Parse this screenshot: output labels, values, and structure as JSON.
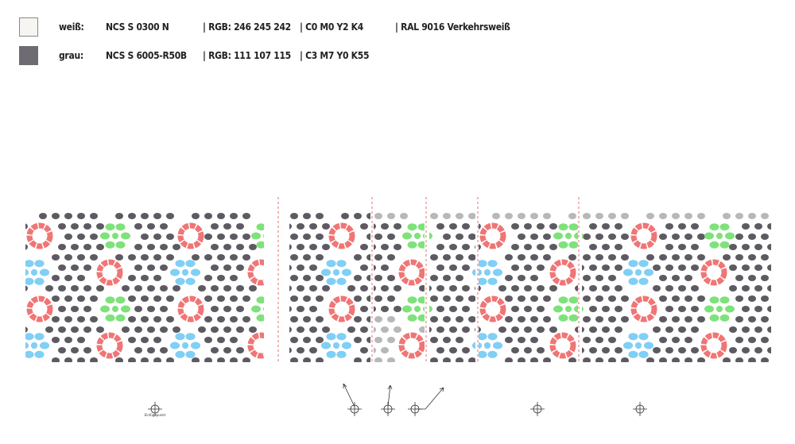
{
  "legend": [
    {
      "name": "weiß:",
      "ncs": "NCS S 0300 N",
      "rgb": "| RGB: 246 245 242",
      "cmyk": "| C0 M0 Y2 K4",
      "ral": "| RAL 9016 Verkehrsweiß"
    },
    {
      "name": "grau:",
      "ncs": "NCS S 6005-R50B",
      "rgb": "| RGB: 111 107 115",
      "cmyk": "| C3 M7 Y0 K55"
    }
  ],
  "insertion_point_label": "Einfügepunkt"
}
